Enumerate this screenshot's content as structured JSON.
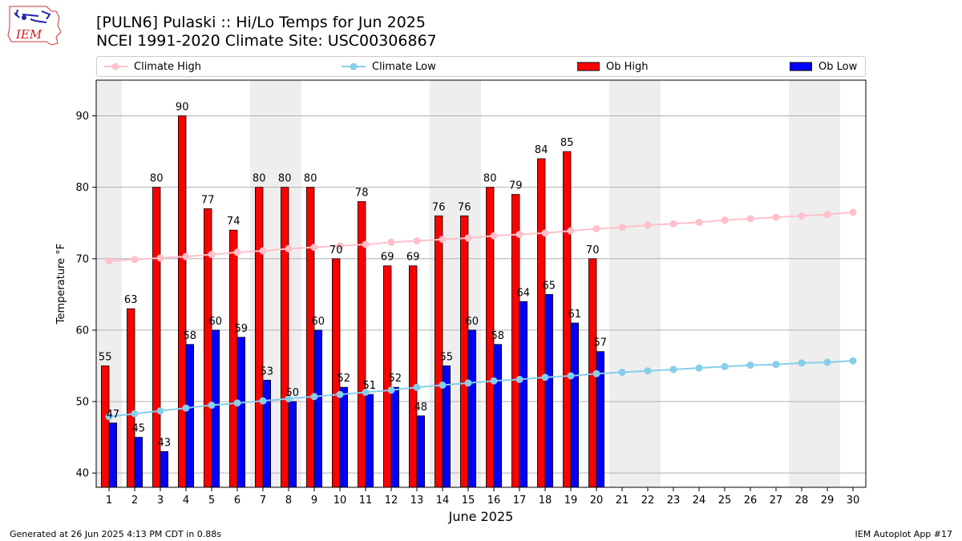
{
  "header": {
    "title_line1": "[PULN6] Pulaski :: Hi/Lo Temps for Jun 2025",
    "title_line2": "NCEI 1991-2020 Climate Site: USC00306867",
    "logo_text": "IEM"
  },
  "footer": {
    "generated": "Generated at 26 Jun 2025 4:13 PM CDT in 0.88s",
    "app": "IEM Autoplot App #17"
  },
  "colors": {
    "ob_high": "#ff0000",
    "ob_low": "#0000ff",
    "climate_high": "#ffc0cb",
    "climate_low": "#87ceeb",
    "weekend_band": "#eeeeee",
    "grid": "#b0b0b0"
  },
  "chart_data": {
    "type": "bar",
    "xlabel": "June 2025",
    "ylabel": "Temperature °F",
    "ylim": [
      38,
      95
    ],
    "xlim": [
      0.5,
      30.5
    ],
    "yticks": [
      40,
      50,
      60,
      70,
      80,
      90
    ],
    "grid": "horizontal",
    "legend": "top",
    "days": [
      1,
      2,
      3,
      4,
      5,
      6,
      7,
      8,
      9,
      10,
      11,
      12,
      13,
      14,
      15,
      16,
      17,
      18,
      19,
      20,
      21,
      22,
      23,
      24,
      25,
      26,
      27,
      28,
      29,
      30
    ],
    "weekend_days": [
      1,
      7,
      8,
      14,
      15,
      21,
      22,
      28,
      29
    ],
    "series": [
      {
        "name": "Climate High",
        "kind": "line",
        "values": [
          69.7,
          69.9,
          70.1,
          70.3,
          70.6,
          70.9,
          71.1,
          71.4,
          71.6,
          71.8,
          72.0,
          72.3,
          72.5,
          72.7,
          72.9,
          73.2,
          73.4,
          73.6,
          73.9,
          74.2,
          74.4,
          74.7,
          74.9,
          75.1,
          75.4,
          75.6,
          75.8,
          76.0,
          76.2,
          76.5
        ]
      },
      {
        "name": "Climate Low",
        "kind": "line",
        "values": [
          47.9,
          48.3,
          48.7,
          49.1,
          49.5,
          49.8,
          50.1,
          50.4,
          50.7,
          51.0,
          51.3,
          51.6,
          52.0,
          52.3,
          52.6,
          52.9,
          53.1,
          53.4,
          53.6,
          53.9,
          54.1,
          54.3,
          54.5,
          54.7,
          54.9,
          55.1,
          55.2,
          55.4,
          55.5,
          55.7
        ]
      },
      {
        "name": "Ob High",
        "kind": "bar",
        "values": [
          55,
          63,
          80,
          90,
          77,
          74,
          80,
          80,
          80,
          70,
          78,
          69,
          69,
          76,
          76,
          80,
          79,
          84,
          85,
          70
        ]
      },
      {
        "name": "Ob Low",
        "kind": "bar",
        "values": [
          47,
          45,
          43,
          58,
          60,
          59,
          53,
          50,
          60,
          52,
          51,
          52,
          48,
          55,
          60,
          58,
          64,
          65,
          61,
          57
        ]
      }
    ]
  }
}
